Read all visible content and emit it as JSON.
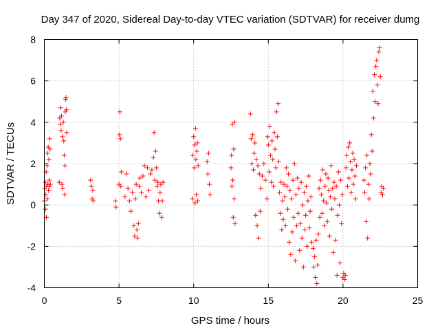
{
  "chart_data": {
    "type": "scatter",
    "title": "Day 347 of 2020, Sidereal Day-to-day VTEC variation (SDTVAR) for receiver dumg",
    "xlabel": "GPS time / hours",
    "ylabel": "SDTVAR / TECUs",
    "xlim": [
      0,
      25
    ],
    "ylim": [
      -4,
      8
    ],
    "x_ticks": [
      0,
      5,
      10,
      15,
      20,
      25
    ],
    "y_ticks": [
      -4,
      -2,
      0,
      2,
      4,
      6,
      8
    ],
    "x_tick_labels": [
      "0",
      "5",
      "10",
      "15",
      "20",
      "25"
    ],
    "y_tick_labels": [
      "-4",
      "-2",
      "0",
      "2",
      "4",
      "6",
      "8"
    ],
    "grid": true,
    "marker": "+",
    "colors": {
      "points": "#ff0000",
      "axes": "#000000",
      "grid": "#a0a0a0"
    },
    "series": [
      {
        "name": "SDTVAR",
        "points": [
          [
            0.0,
            0.2
          ],
          [
            0.03,
            0.8
          ],
          [
            0.06,
            1.1
          ],
          [
            0.08,
            -0.2
          ],
          [
            0.1,
            0.5
          ],
          [
            0.12,
            1.6
          ],
          [
            0.14,
            -0.6
          ],
          [
            0.16,
            0.9
          ],
          [
            0.18,
            1.9
          ],
          [
            0.2,
            0.3
          ],
          [
            0.22,
            2.5
          ],
          [
            0.24,
            1.0
          ],
          [
            0.26,
            2.8
          ],
          [
            0.28,
            0.7
          ],
          [
            0.3,
            2.2
          ],
          [
            0.32,
            1.2
          ],
          [
            0.34,
            0.9
          ],
          [
            0.36,
            3.2
          ],
          [
            0.38,
            2.7
          ],
          [
            0.4,
            1.0
          ],
          [
            1.0,
            1.1
          ],
          [
            1.03,
            4.2
          ],
          [
            1.06,
            3.9
          ],
          [
            1.09,
            4.7
          ],
          [
            1.12,
            3.6
          ],
          [
            1.15,
            4.3
          ],
          [
            1.18,
            1.0
          ],
          [
            1.21,
            3.3
          ],
          [
            1.24,
            0.8
          ],
          [
            1.27,
            4.0
          ],
          [
            1.3,
            3.1
          ],
          [
            1.33,
            2.4
          ],
          [
            1.36,
            0.5
          ],
          [
            1.38,
            1.9
          ],
          [
            1.4,
            4.5
          ],
          [
            1.42,
            5.1
          ],
          [
            1.45,
            5.2
          ],
          [
            1.48,
            4.6
          ],
          [
            1.5,
            3.5
          ],
          [
            3.1,
            1.2
          ],
          [
            3.15,
            0.9
          ],
          [
            3.2,
            0.3
          ],
          [
            3.25,
            0.7
          ],
          [
            3.28,
            0.2
          ],
          [
            4.75,
            0.2
          ],
          [
            4.8,
            -0.1
          ],
          [
            5.0,
            1.0
          ],
          [
            5.03,
            3.4
          ],
          [
            5.06,
            4.5
          ],
          [
            5.09,
            3.2
          ],
          [
            5.12,
            0.9
          ],
          [
            5.15,
            1.6
          ],
          [
            5.4,
            0.4
          ],
          [
            5.5,
            1.5
          ],
          [
            5.6,
            0.8
          ],
          [
            5.7,
            0.2
          ],
          [
            5.8,
            -0.3
          ],
          [
            5.9,
            0.6
          ],
          [
            6.0,
            -1.0
          ],
          [
            6.05,
            -1.5
          ],
          [
            6.1,
            0.3
          ],
          [
            6.15,
            1.0
          ],
          [
            6.2,
            -1.2
          ],
          [
            6.25,
            -1.6
          ],
          [
            6.3,
            -0.9
          ],
          [
            6.35,
            0.9
          ],
          [
            6.4,
            1.3
          ],
          [
            6.5,
            0.6
          ],
          [
            6.6,
            1.4
          ],
          [
            6.7,
            1.9
          ],
          [
            6.8,
            0.4
          ],
          [
            6.9,
            1.8
          ],
          [
            7.0,
            0.7
          ],
          [
            7.1,
            1.5
          ],
          [
            7.2,
            1.7
          ],
          [
            7.3,
            2.3
          ],
          [
            7.35,
            3.5
          ],
          [
            7.4,
            1.2
          ],
          [
            7.45,
            2.6
          ],
          [
            7.5,
            1.8
          ],
          [
            7.55,
            0.9
          ],
          [
            7.6,
            1.1
          ],
          [
            7.65,
            0.2
          ],
          [
            7.7,
            -0.4
          ],
          [
            7.75,
            0.6
          ],
          [
            7.8,
            1.0
          ],
          [
            7.85,
            -0.6
          ],
          [
            7.9,
            0.2
          ],
          [
            7.95,
            1.1
          ],
          [
            9.9,
            0.3
          ],
          [
            9.95,
            2.4
          ],
          [
            10.0,
            3.3
          ],
          [
            10.03,
            1.8
          ],
          [
            10.06,
            2.9
          ],
          [
            10.09,
            0.1
          ],
          [
            10.12,
            3.7
          ],
          [
            10.15,
            2.2
          ],
          [
            10.18,
            0.5
          ],
          [
            10.21,
            2.6
          ],
          [
            10.24,
            3.0
          ],
          [
            10.27,
            0.2
          ],
          [
            10.3,
            1.9
          ],
          [
            10.9,
            2.1
          ],
          [
            10.95,
            1.5
          ],
          [
            11.0,
            2.5
          ],
          [
            11.05,
            1.0
          ],
          [
            11.1,
            0.5
          ],
          [
            12.5,
            1.8
          ],
          [
            12.53,
            2.4
          ],
          [
            12.56,
            0.9
          ],
          [
            12.59,
            3.9
          ],
          [
            12.62,
            1.2
          ],
          [
            12.65,
            -0.6
          ],
          [
            12.68,
            2.7
          ],
          [
            12.71,
            0.3
          ],
          [
            12.74,
            4.0
          ],
          [
            12.77,
            -0.9
          ],
          [
            13.8,
            4.4
          ],
          [
            13.85,
            3.2
          ],
          [
            13.9,
            2.0
          ],
          [
            13.95,
            3.4
          ],
          [
            14.0,
            1.7
          ],
          [
            14.05,
            2.5
          ],
          [
            14.1,
            3.0
          ],
          [
            14.15,
            -0.5
          ],
          [
            14.2,
            2.2
          ],
          [
            14.25,
            -1.0
          ],
          [
            14.3,
            1.9
          ],
          [
            14.35,
            -1.6
          ],
          [
            14.4,
            1.5
          ],
          [
            14.45,
            -0.3
          ],
          [
            14.5,
            0.8
          ],
          [
            14.6,
            1.4
          ],
          [
            14.7,
            2.0
          ],
          [
            14.8,
            1.2
          ],
          [
            14.9,
            0.3
          ],
          [
            14.95,
            3.3
          ],
          [
            15.0,
            2.9
          ],
          [
            15.05,
            1.6
          ],
          [
            15.1,
            3.8
          ],
          [
            15.15,
            2.4
          ],
          [
            15.2,
            1.1
          ],
          [
            15.25,
            3.1
          ],
          [
            15.3,
            2.2
          ],
          [
            15.35,
            0.9
          ],
          [
            15.4,
            3.5
          ],
          [
            15.45,
            2.7
          ],
          [
            15.5,
            1.8
          ],
          [
            15.55,
            4.5
          ],
          [
            15.6,
            3.3
          ],
          [
            15.65,
            4.9
          ],
          [
            15.7,
            2.1
          ],
          [
            15.75,
            0.6
          ],
          [
            15.8,
            -0.4
          ],
          [
            15.85,
            1.1
          ],
          [
            15.9,
            -1.2
          ],
          [
            15.95,
            0.2
          ],
          [
            16.0,
            -0.7
          ],
          [
            16.05,
            1.0
          ],
          [
            16.1,
            0.4
          ],
          [
            16.15,
            -1.0
          ],
          [
            16.2,
            1.8
          ],
          [
            16.25,
            0.9
          ],
          [
            16.3,
            -0.2
          ],
          [
            16.35,
            1.5
          ],
          [
            16.4,
            -1.8
          ],
          [
            16.45,
            0.7
          ],
          [
            16.5,
            -2.4
          ],
          [
            16.55,
            0.3
          ],
          [
            16.6,
            -1.3
          ],
          [
            16.65,
            1.2
          ],
          [
            16.7,
            -0.6
          ],
          [
            16.75,
            2.0
          ],
          [
            16.8,
            -2.7
          ],
          [
            16.85,
            0.5
          ],
          [
            16.9,
            -1.0
          ],
          [
            16.95,
            1.3
          ],
          [
            17.0,
            -0.4
          ],
          [
            17.05,
            0.8
          ],
          [
            17.1,
            -2.2
          ],
          [
            17.15,
            -0.9
          ],
          [
            17.2,
            1.1
          ],
          [
            17.25,
            -1.6
          ],
          [
            17.3,
            0.0
          ],
          [
            17.35,
            -3.0
          ],
          [
            17.4,
            0.6
          ],
          [
            17.45,
            -1.2
          ],
          [
            17.5,
            -0.5
          ],
          [
            17.55,
            0.9
          ],
          [
            17.6,
            -2.0
          ],
          [
            17.65,
            0.2
          ],
          [
            17.7,
            1.4
          ],
          [
            17.75,
            -1.1
          ],
          [
            17.8,
            -0.3
          ],
          [
            17.85,
            0.4
          ],
          [
            17.9,
            -1.8
          ],
          [
            18.0,
            -2.1
          ],
          [
            18.05,
            -3.0
          ],
          [
            18.1,
            -2.5
          ],
          [
            18.15,
            -3.5
          ],
          [
            18.2,
            -1.7
          ],
          [
            18.25,
            -3.8
          ],
          [
            18.3,
            -2.9
          ],
          [
            18.35,
            -1.4
          ],
          [
            18.4,
            0.8
          ],
          [
            18.45,
            -0.6
          ],
          [
            18.5,
            1.2
          ],
          [
            18.55,
            0.5
          ],
          [
            18.6,
            -0.4
          ],
          [
            18.65,
            1.7
          ],
          [
            18.7,
            0.2
          ],
          [
            18.75,
            -1.0
          ],
          [
            18.8,
            0.9
          ],
          [
            18.85,
            1.5
          ],
          [
            18.9,
            0.1
          ],
          [
            18.95,
            -0.8
          ],
          [
            19.0,
            1.3
          ],
          [
            19.05,
            0.7
          ],
          [
            19.1,
            -1.5
          ],
          [
            19.15,
            0.4
          ],
          [
            19.2,
            1.9
          ],
          [
            19.25,
            -0.2
          ],
          [
            19.3,
            0.8
          ],
          [
            19.35,
            -2.3
          ],
          [
            19.4,
            1.1
          ],
          [
            19.45,
            0.3
          ],
          [
            19.5,
            -1.7
          ],
          [
            19.55,
            0.9
          ],
          [
            19.6,
            -3.4
          ],
          [
            19.65,
            -0.5
          ],
          [
            19.7,
            1.6
          ],
          [
            19.75,
            0.0
          ],
          [
            19.8,
            -2.8
          ],
          [
            19.85,
            1.2
          ],
          [
            19.9,
            -0.9
          ],
          [
            19.95,
            0.5
          ],
          [
            20.0,
            -3.5
          ],
          [
            20.05,
            -3.3
          ],
          [
            20.1,
            -3.6
          ],
          [
            20.15,
            -3.4
          ],
          [
            20.2,
            1.8
          ],
          [
            20.25,
            2.4
          ],
          [
            20.3,
            0.9
          ],
          [
            20.35,
            2.8
          ],
          [
            20.4,
            1.3
          ],
          [
            20.45,
            3.0
          ],
          [
            20.5,
            2.1
          ],
          [
            20.55,
            0.6
          ],
          [
            20.6,
            1.7
          ],
          [
            20.65,
            2.5
          ],
          [
            20.7,
            1.0
          ],
          [
            20.75,
            2.2
          ],
          [
            20.8,
            1.4
          ],
          [
            20.85,
            0.3
          ],
          [
            20.9,
            1.9
          ],
          [
            21.4,
            1.2
          ],
          [
            21.45,
            0.6
          ],
          [
            21.5,
            1.8
          ],
          [
            21.55,
            -0.8
          ],
          [
            21.6,
            2.4
          ],
          [
            21.65,
            -1.6
          ],
          [
            21.7,
            1.0
          ],
          [
            21.75,
            0.3
          ],
          [
            21.8,
            2.0
          ],
          [
            21.85,
            1.5
          ],
          [
            21.9,
            3.4
          ],
          [
            21.95,
            2.6
          ],
          [
            22.0,
            5.5
          ],
          [
            22.05,
            4.2
          ],
          [
            22.1,
            6.3
          ],
          [
            22.15,
            5.0
          ],
          [
            22.2,
            6.7
          ],
          [
            22.25,
            7.0
          ],
          [
            22.3,
            5.8
          ],
          [
            22.35,
            4.9
          ],
          [
            22.4,
            7.4
          ],
          [
            22.45,
            7.6
          ],
          [
            22.5,
            6.2
          ],
          [
            22.55,
            0.6
          ],
          [
            22.6,
            0.9
          ],
          [
            22.65,
            0.5
          ],
          [
            22.7,
            0.8
          ]
        ]
      }
    ]
  }
}
